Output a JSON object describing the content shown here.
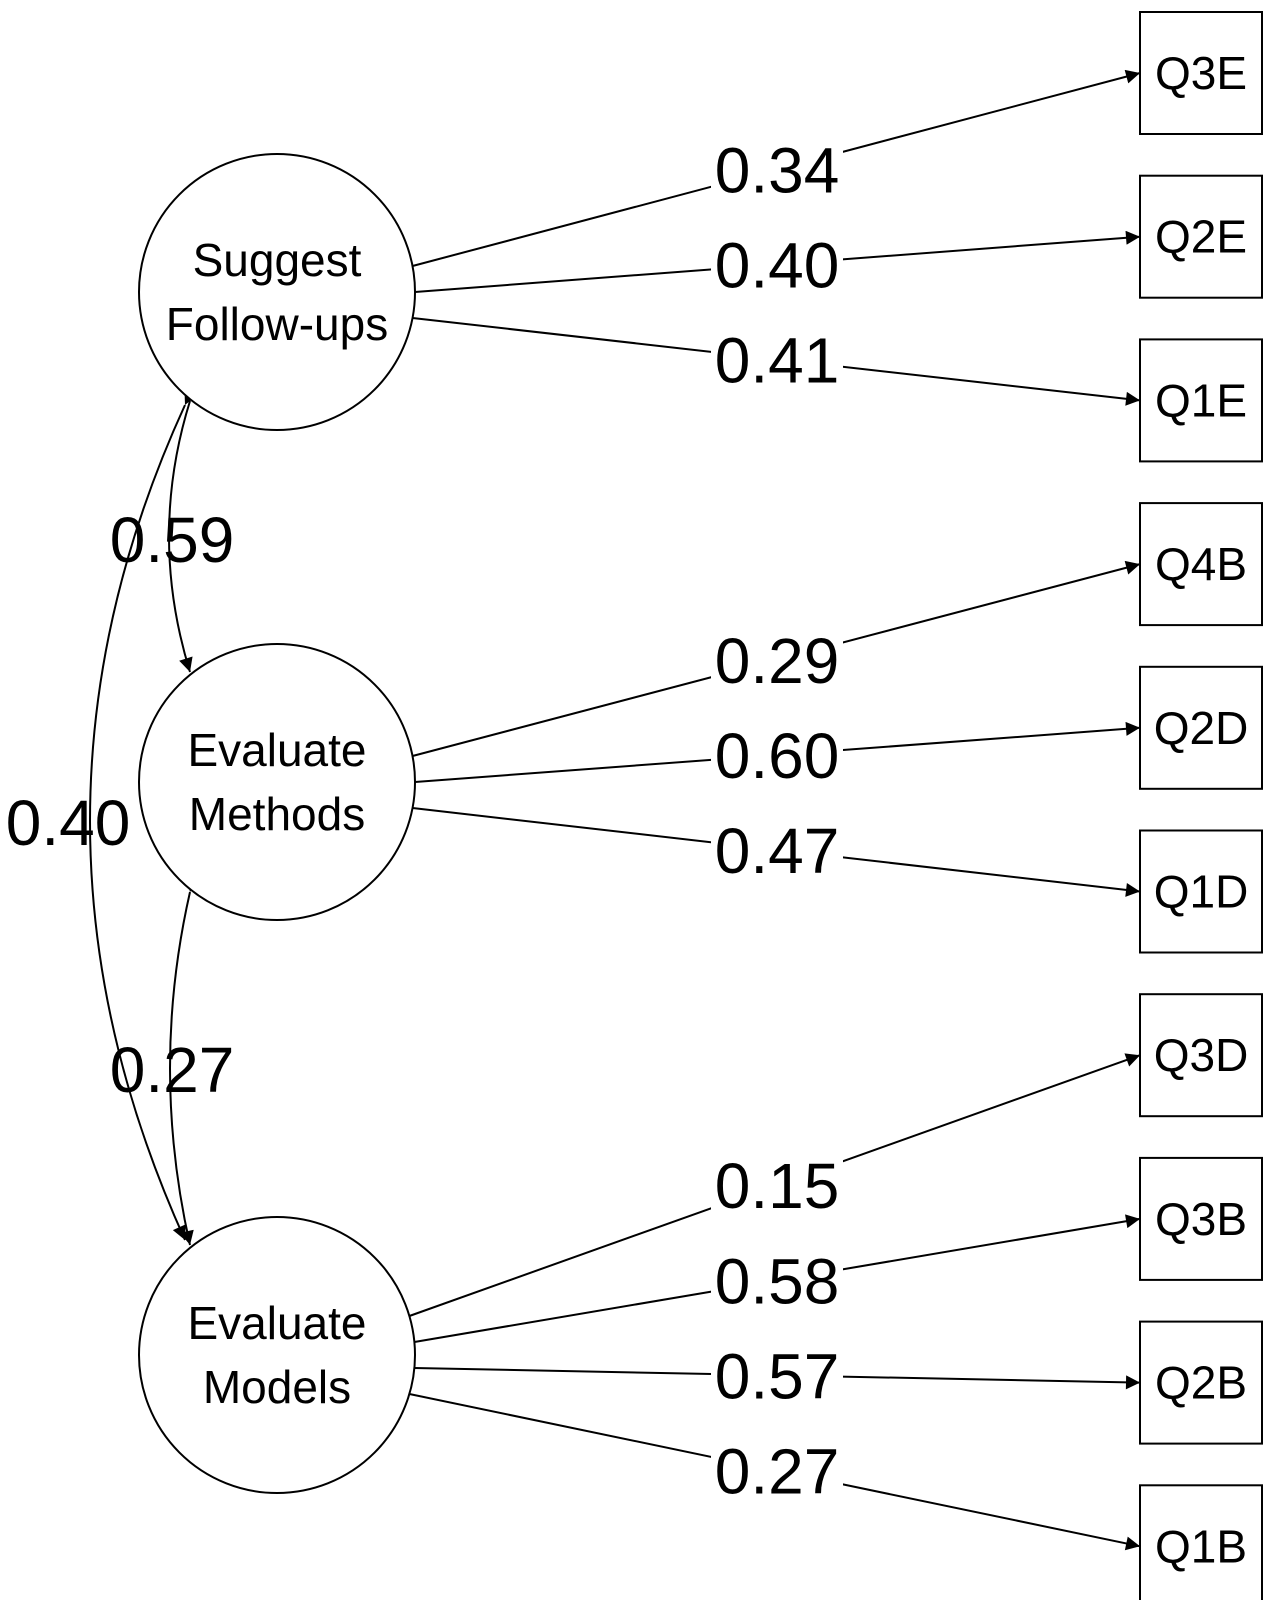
{
  "factors": [
    {
      "id": "suggest",
      "lines": [
        "Suggest",
        "Follow-ups"
      ]
    },
    {
      "id": "methods",
      "lines": [
        "Evaluate",
        "Methods"
      ]
    },
    {
      "id": "models",
      "lines": [
        "Evaluate",
        "Models"
      ]
    }
  ],
  "indicators": [
    "Q3E",
    "Q2E",
    "Q1E",
    "Q4B",
    "Q2D",
    "Q1D",
    "Q3D",
    "Q3B",
    "Q2B",
    "Q1B"
  ],
  "loadings": [
    {
      "factor": "suggest",
      "indicator": "Q3E",
      "value": "0.34"
    },
    {
      "factor": "suggest",
      "indicator": "Q2E",
      "value": "0.40"
    },
    {
      "factor": "suggest",
      "indicator": "Q1E",
      "value": "0.41"
    },
    {
      "factor": "methods",
      "indicator": "Q4B",
      "value": "0.29"
    },
    {
      "factor": "methods",
      "indicator": "Q2D",
      "value": "0.60"
    },
    {
      "factor": "methods",
      "indicator": "Q1D",
      "value": "0.47"
    },
    {
      "factor": "models",
      "indicator": "Q3D",
      "value": "0.15"
    },
    {
      "factor": "models",
      "indicator": "Q3B",
      "value": "0.58"
    },
    {
      "factor": "models",
      "indicator": "Q2B",
      "value": "0.57"
    },
    {
      "factor": "models",
      "indicator": "Q1B",
      "value": "0.27"
    }
  ],
  "covariances": [
    {
      "from": "suggest",
      "to": "methods",
      "value": "0.59"
    },
    {
      "from": "methods",
      "to": "models",
      "value": "0.27"
    },
    {
      "from": "suggest",
      "to": "models",
      "value": "0.40"
    }
  ]
}
